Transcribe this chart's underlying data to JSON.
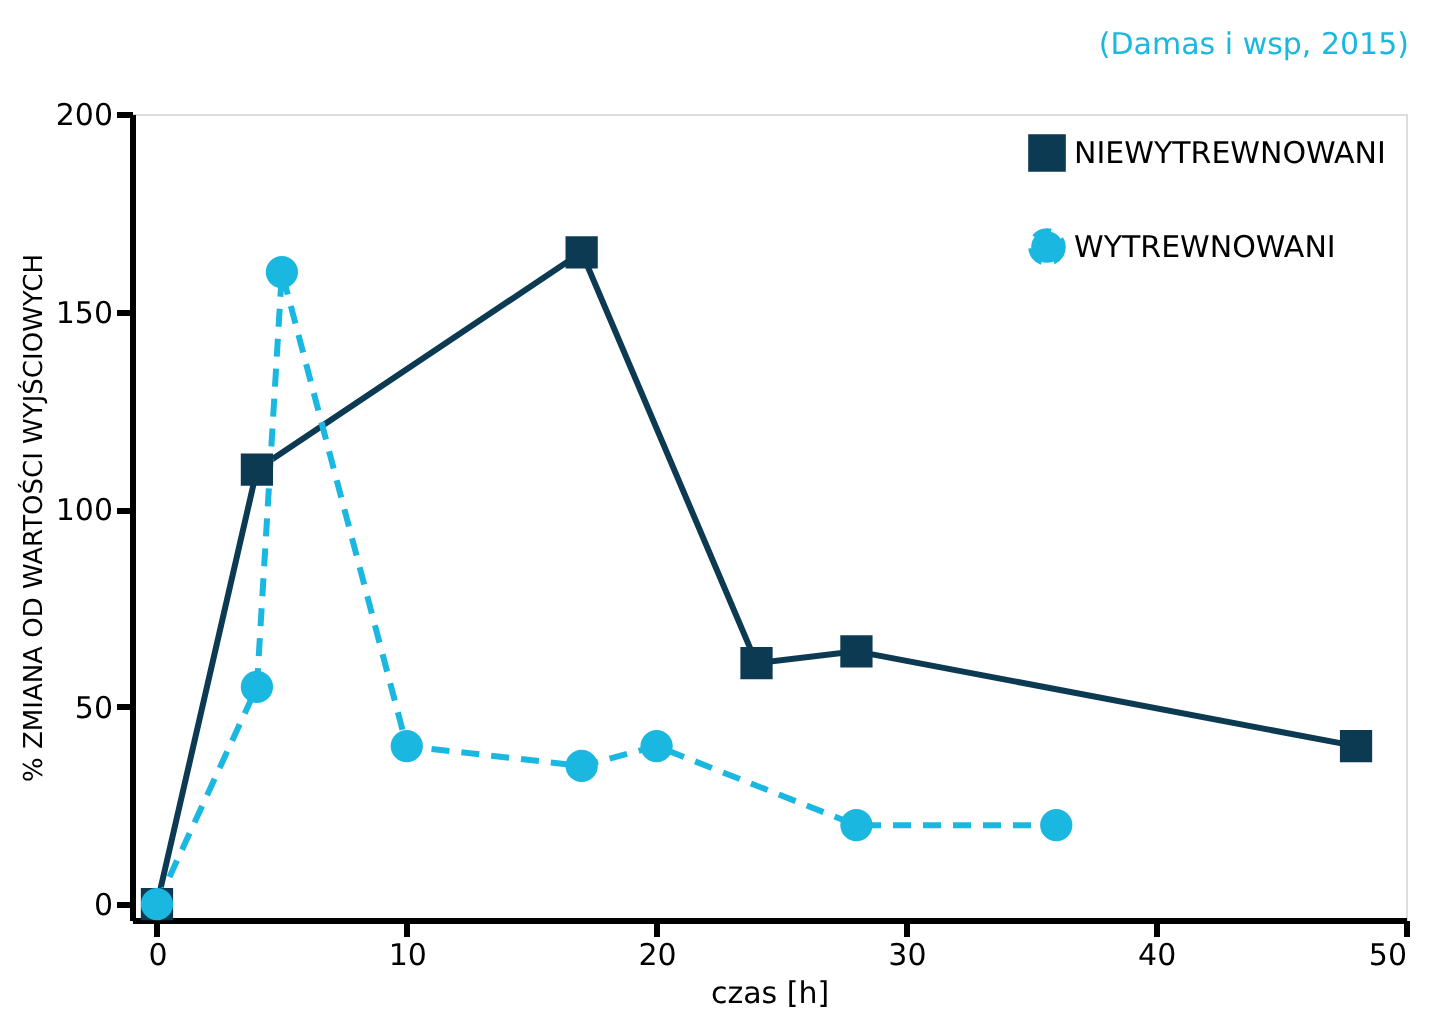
{
  "chart_data": {
    "type": "line",
    "xlabel": "czas [h]",
    "ylabel": "% ZMIANA OD WARTOŚCI WYJŚCIOWYCH",
    "annotations": [
      "(Damas i wsp, 2015)"
    ],
    "xlim": [
      -1,
      50
    ],
    "ylim": [
      -4,
      200
    ],
    "xticks": [
      0,
      10,
      20,
      30,
      40,
      50
    ],
    "yticks": [
      0,
      50,
      100,
      150,
      200
    ],
    "grid": false,
    "legend": "top right",
    "series": [
      {
        "name": "NIEWYTREWNOWANI",
        "color": "#0b3a52",
        "marker": "square",
        "line_style": "solid",
        "x": [
          0,
          4,
          17,
          24,
          28,
          48
        ],
        "values": [
          0,
          110,
          165,
          61,
          64,
          40
        ]
      },
      {
        "name": "WYTREWNOWANI",
        "color": "#1ab8e0",
        "marker": "circle",
        "line_style": "dashed",
        "x": [
          0,
          4,
          5,
          10,
          17,
          20,
          28,
          36
        ],
        "values": [
          0,
          55,
          160,
          40,
          35,
          40,
          20,
          20
        ]
      }
    ]
  }
}
